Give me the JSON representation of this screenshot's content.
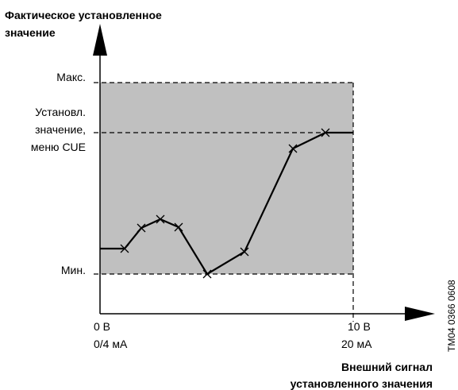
{
  "title": [
    "Фактическое установленное",
    "значение"
  ],
  "y_labels": {
    "max": "Макс.",
    "setpoint": [
      "Установл.",
      "значение,",
      "меню CUE"
    ],
    "min": "Мин."
  },
  "x_labels": {
    "start": [
      "0 В",
      "0/4 мА"
    ],
    "end": [
      "10 В",
      "20 мА"
    ]
  },
  "x_axis_title": [
    "Внешний сигнал",
    "установленного значения"
  ],
  "code": "TM04 0366 0608"
}
